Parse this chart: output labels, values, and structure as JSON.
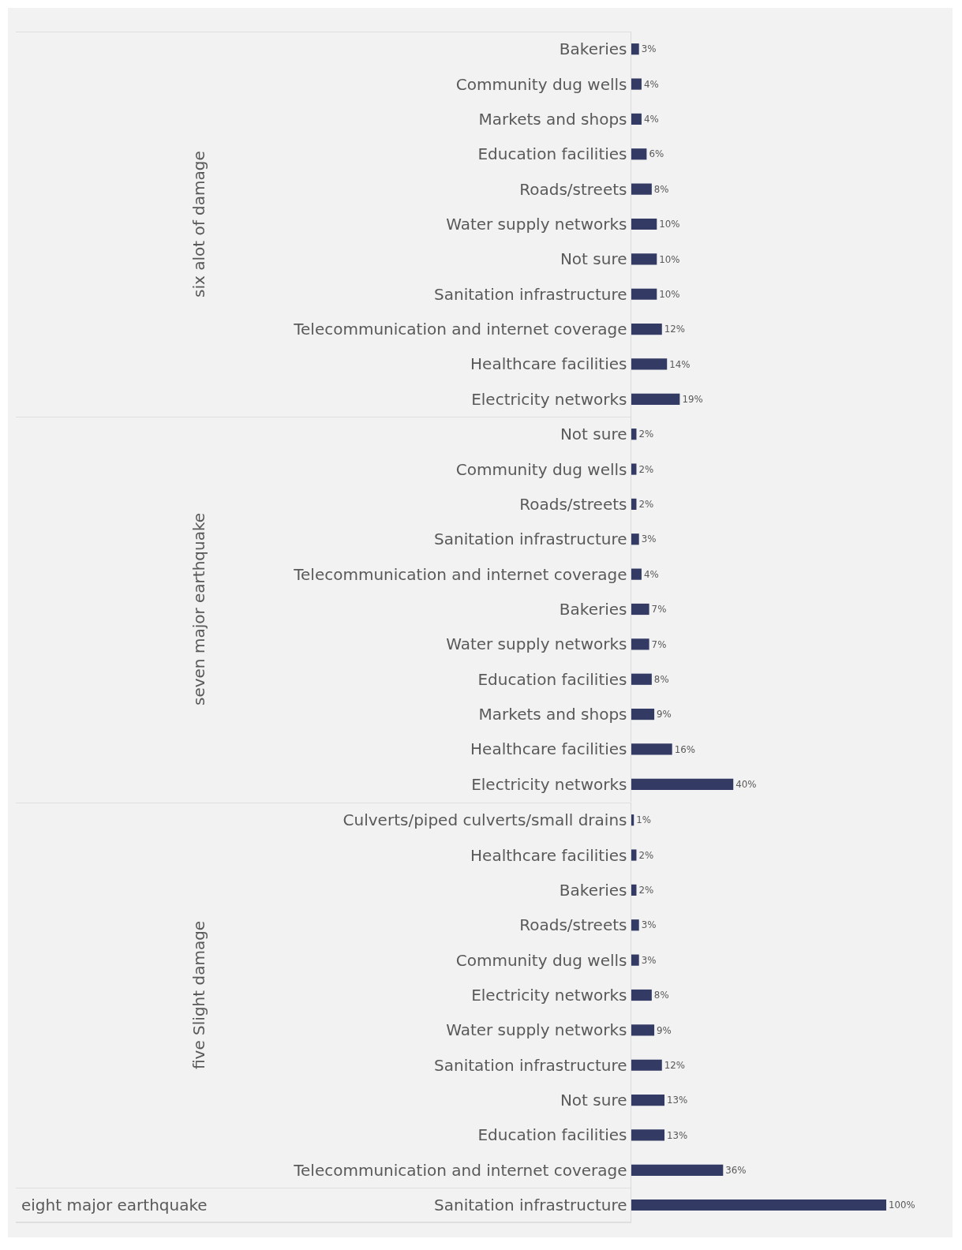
{
  "chart_data": [
    {
      "type": "bar",
      "orientation": "horizontal",
      "ylabel": "six alot of damage",
      "color": "#333a63",
      "categories": [
        "Bakeries",
        "Community dug wells",
        "Markets and shops",
        "Education facilities",
        "Roads/streets",
        "Water supply networks",
        "Not sure",
        "Sanitation infrastructure",
        "Telecommunication and internet coverage",
        "Healthcare facilities",
        "Electricity networks"
      ],
      "values": [
        3,
        4,
        4,
        6,
        8,
        10,
        10,
        10,
        12,
        14,
        19
      ],
      "value_labels": [
        "3%",
        "4%",
        "4%",
        "6%",
        "8%",
        "10%",
        "10%",
        "10%",
        "12%",
        "14%",
        "19%"
      ]
    },
    {
      "type": "bar",
      "orientation": "horizontal",
      "ylabel": "seven major earthquake",
      "color": "#333a63",
      "categories": [
        "Not sure",
        "Community dug wells",
        "Roads/streets",
        "Sanitation infrastructure",
        "Telecommunication and internet coverage",
        "Bakeries",
        "Water supply networks",
        "Education facilities",
        "Markets and shops",
        "Healthcare facilities",
        "Electricity networks"
      ],
      "values": [
        2,
        2,
        2,
        3,
        4,
        7,
        7,
        8,
        9,
        16,
        40
      ],
      "value_labels": [
        "2%",
        "2%",
        "2%",
        "3%",
        "4%",
        "7%",
        "7%",
        "8%",
        "9%",
        "16%",
        "40%"
      ]
    },
    {
      "type": "bar",
      "orientation": "horizontal",
      "ylabel": "five Slight damage",
      "color": "#333a63",
      "categories": [
        "Culverts/piped culverts/small drains",
        "Healthcare facilities",
        "Bakeries",
        "Roads/streets",
        "Community dug wells",
        "Electricity networks",
        "Water supply networks",
        "Sanitation infrastructure",
        "Not sure",
        "Education facilities",
        "Telecommunication and internet coverage"
      ],
      "values": [
        1,
        2,
        2,
        3,
        3,
        8,
        9,
        12,
        13,
        13,
        36
      ],
      "value_labels": [
        "1%",
        "2%",
        "2%",
        "3%",
        "3%",
        "8%",
        "9%",
        "12%",
        "13%",
        "13%",
        "36%"
      ]
    },
    {
      "type": "bar",
      "orientation": "horizontal",
      "ylabel": "eight major earthquake",
      "color": "#333a63",
      "categories": [
        "Sanitation infrastructure"
      ],
      "values": [
        100
      ],
      "value_labels": [
        "100%"
      ]
    }
  ]
}
